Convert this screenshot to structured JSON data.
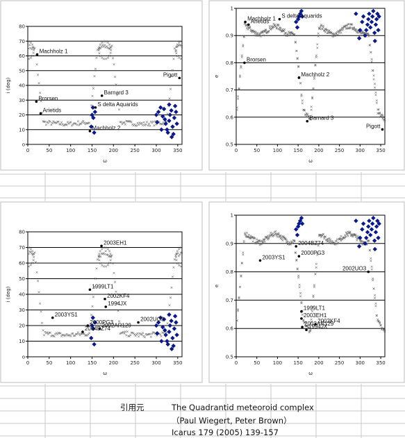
{
  "citation": {
    "label": "引用元",
    "line1": "The Quadrantid meteoroid complex",
    "line2": "（Paul Wiegert, Peter Brown）",
    "line3": "Icarus 179 (2005) 139-157"
  },
  "colors": {
    "grid_line": "#c8c8c8",
    "simulation_marker": "#606060",
    "observed_marker": "#0a1a8c",
    "label_dot": "#000000",
    "plot_border": "#000000"
  },
  "chart_data": [
    {
      "type": "scatter",
      "position": "top-left",
      "xlabel": "ω",
      "ylabel": "i (deg)",
      "xlim": [
        0,
        360
      ],
      "ylim": [
        0,
        80
      ],
      "xticks": [
        "0",
        "50",
        "100",
        "150",
        "200",
        "250",
        "300",
        "350"
      ],
      "yticks": [
        "o",
        "10",
        "20",
        "30",
        "40",
        "50",
        "60",
        "70",
        "80"
      ],
      "hlines": [
        10,
        20,
        30,
        40,
        50,
        60,
        70
      ],
      "series_simulation": "x",
      "series_observed": "diamond",
      "labels": [
        {
          "text": "Machholz 1",
          "x": 22,
          "y": 61
        },
        {
          "text": "Brorsen",
          "x": 20,
          "y": 29
        },
        {
          "text": "Arietids",
          "x": 30,
          "y": 21
        },
        {
          "text": "Barnard 3",
          "x": 173,
          "y": 33
        },
        {
          "text": "S delta Aquarids",
          "x": 158,
          "y": 25
        },
        {
          "text": "Machholz 2",
          "x": 145,
          "y": 9
        },
        {
          "text": "Pigott",
          "x": 354,
          "y": 45
        }
      ]
    },
    {
      "type": "scatter",
      "position": "top-right",
      "xlabel": "ω",
      "ylabel": "e",
      "xlim": [
        0,
        360
      ],
      "ylim": [
        0.5,
        1
      ],
      "xticks": [
        "0",
        "50",
        "100",
        "150",
        "200",
        "250",
        "300",
        "350"
      ],
      "yticks": [
        "0.5",
        "0.6",
        "0.7",
        "0.8",
        "0.9",
        "1"
      ],
      "hlines": [
        0.6,
        0.7,
        0.8,
        0.9
      ],
      "labels": [
        {
          "text": "S delta Aquarids",
          "x": 105,
          "y": 0.96
        },
        {
          "text": "Machholz 1",
          "x": 22,
          "y": 0.95
        },
        {
          "text": "Arietids",
          "x": 30,
          "y": 0.94
        },
        {
          "text": "Brorsen",
          "x": 20,
          "y": 0.8
        },
        {
          "text": "Machholz 2",
          "x": 152,
          "y": 0.745
        },
        {
          "text": "Barnard 3",
          "x": 172,
          "y": 0.585
        },
        {
          "text": "Pigott",
          "x": 354,
          "y": 0.555
        }
      ]
    },
    {
      "type": "scatter",
      "position": "bottom-left",
      "xlabel": "ω",
      "ylabel": "i (deg)",
      "xlim": [
        0,
        360
      ],
      "ylim": [
        0,
        80
      ],
      "xticks": [
        "0",
        "50",
        "100",
        "150",
        "200",
        "250",
        "300",
        "350"
      ],
      "yticks": [
        "o",
        "10",
        "20",
        "30",
        "40",
        "50",
        "60",
        "70",
        "80"
      ],
      "hlines": [
        10,
        20,
        30,
        40,
        50,
        60,
        70
      ],
      "labels": [
        {
          "text": "2003EH1",
          "x": 172,
          "y": 71
        },
        {
          "text": "1999LT1",
          "x": 145,
          "y": 43
        },
        {
          "text": "2002KF4",
          "x": 180,
          "y": 37
        },
        {
          "text": "1994JX",
          "x": 182,
          "y": 32
        },
        {
          "text": "2003YS1",
          "x": 58,
          "y": 25
        },
        {
          "text": "2002UO3",
          "x": 258,
          "y": 22
        },
        {
          "text": "2000PG3",
          "x": 140,
          "y": 20
        },
        {
          "text": "2002AR129",
          "x": 168,
          "y": 18
        },
        {
          "text": "2004BZ74",
          "x": 128,
          "y": 16
        }
      ]
    },
    {
      "type": "scatter",
      "position": "bottom-right",
      "xlabel": "ω",
      "ylabel": "e",
      "xlim": [
        0,
        360
      ],
      "ylim": [
        0.5,
        1
      ],
      "xticks": [
        "0",
        "50",
        "100",
        "150",
        "200",
        "250",
        "300",
        "350"
      ],
      "yticks": [
        "0.5",
        "0.6",
        "0.7",
        "0.8",
        "0.9",
        "1"
      ],
      "hlines": [
        0.6,
        0.7,
        0.8,
        0.9
      ],
      "labels": [
        {
          "text": "2004BZ74",
          "x": 145,
          "y": 0.89
        },
        {
          "text": "2000PG3",
          "x": 152,
          "y": 0.855
        },
        {
          "text": "2003YS1",
          "x": 58,
          "y": 0.84
        },
        {
          "text": "2002UO3",
          "x": 320,
          "y": 0.8
        },
        {
          "text": "1999LT1",
          "x": 158,
          "y": 0.66
        },
        {
          "text": "2003EH1",
          "x": 158,
          "y": 0.635
        },
        {
          "text": "2002KF4",
          "x": 192,
          "y": 0.615
        },
        {
          "text": "2002AR129",
          "x": 160,
          "y": 0.605
        },
        {
          "text": "1994JX",
          "x": 170,
          "y": 0.595
        }
      ]
    }
  ]
}
